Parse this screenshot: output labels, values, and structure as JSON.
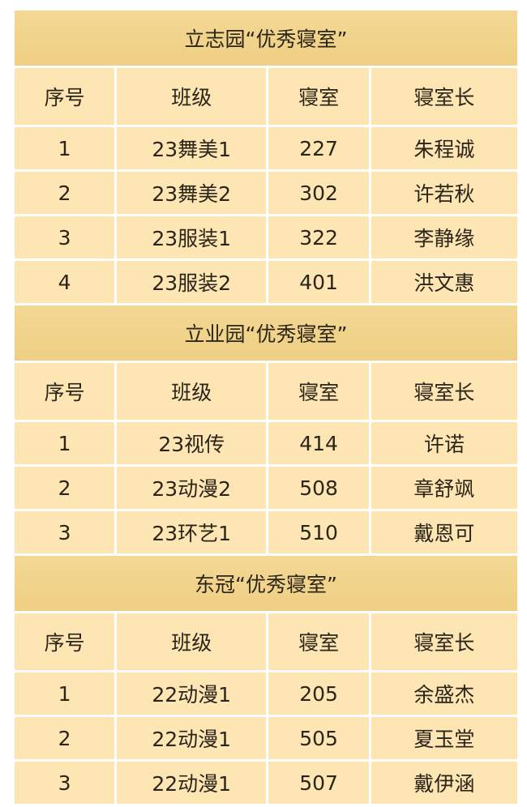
{
  "headers": [
    "序号",
    "班级",
    "寝室",
    "寝室长"
  ],
  "sections": [
    {
      "title": "立志园“优秀寝室”",
      "rows": [
        [
          "1",
          "23舞美1",
          "227",
          "朱程诚"
        ],
        [
          "2",
          "23舞美2",
          "302",
          "许若秋"
        ],
        [
          "3",
          "23服装1",
          "322",
          "李静缘"
        ],
        [
          "4",
          "23服装2",
          "401",
          "洪文惠"
        ]
      ]
    },
    {
      "title": "立业园“优秀寝室”",
      "rows": [
        [
          "1",
          "23视传",
          "414",
          "许诺"
        ],
        [
          "2",
          "23动漫2",
          "508",
          "章舒飒"
        ],
        [
          "3",
          "23环艺1",
          "510",
          "戴恩可"
        ]
      ]
    },
    {
      "title": "东冠“优秀寝室”",
      "rows": [
        [
          "1",
          "22动漫1",
          "205",
          "余盛杰"
        ],
        [
          "2",
          "22动漫1",
          "505",
          "夏玉堂"
        ],
        [
          "3",
          "22动漫1",
          "507",
          "戴伊涵"
        ]
      ]
    }
  ]
}
